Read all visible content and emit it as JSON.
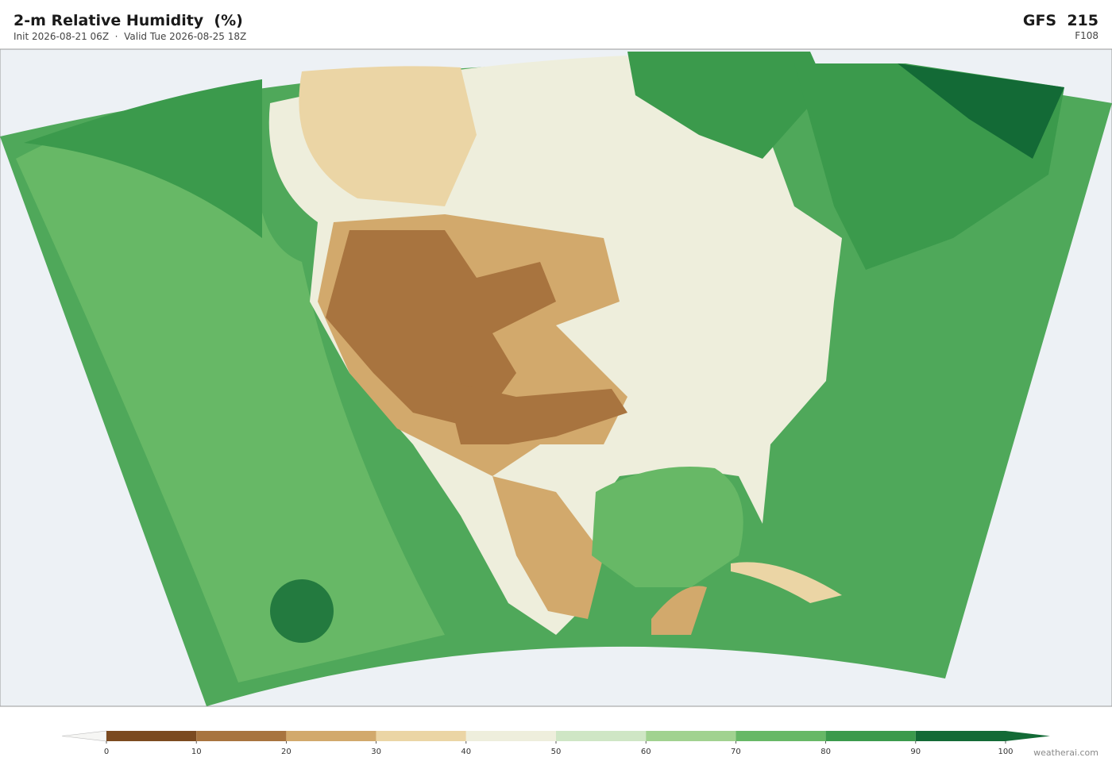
{
  "header": {
    "title": "2-m Relative Humidity  (%)",
    "subtitle": "Init 2026-08-21 06Z  ·  Valid Tue 2026-08-25 18Z",
    "model": "GFS  215",
    "forecast_hour": "F108"
  },
  "colorbar": {
    "ticks": [
      0,
      10,
      20,
      30,
      40,
      50,
      60,
      70,
      80,
      90,
      100
    ],
    "colors": [
      "#7b4a20",
      "#a8743f",
      "#d2a96c",
      "#ebd5a5",
      "#eeeedc",
      "#cfe6c5",
      "#a1d290",
      "#67b866",
      "#3b9a4c",
      "#136a36"
    ],
    "under_color": "#f6f6f4",
    "over_color": "#136a36"
  },
  "credit": "weatherai.com"
}
